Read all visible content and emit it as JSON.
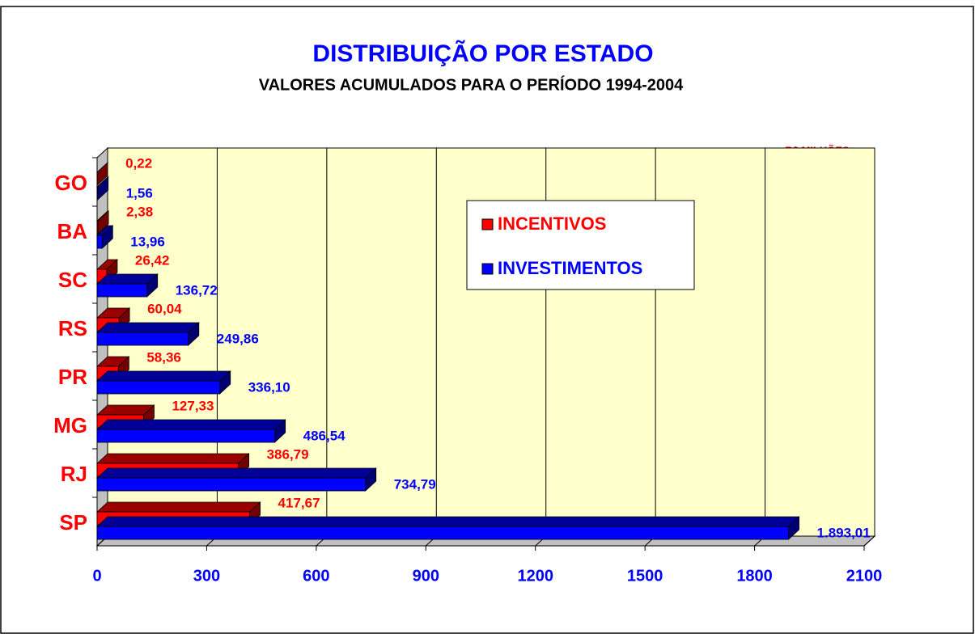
{
  "chart_data": {
    "type": "bar3d_horizontal",
    "title": "DISTRIBUIÇÃO POR ESTADO",
    "subtitle": "VALORES ACUMULADOS PARA O PERÍODO 1994-2004",
    "annotation": "R$ MILHÕES",
    "categories": [
      "GO",
      "BA",
      "SC",
      "RS",
      "PR",
      "MG",
      "RJ",
      "SP"
    ],
    "series": [
      {
        "name": "INCENTIVOS",
        "color": "#ff0000",
        "values": [
          0.22,
          2.38,
          26.42,
          60.04,
          58.36,
          127.33,
          386.79,
          417.67
        ],
        "value_labels": [
          "0,22",
          "2,38",
          "26,42",
          "60,04",
          "58,36",
          "127,33",
          "386,79",
          "417,67"
        ]
      },
      {
        "name": "INVESTIMENTOS",
        "color": "#0000ff",
        "values": [
          1.56,
          13.96,
          136.72,
          249.86,
          336.1,
          486.54,
          734.79,
          1893.01
        ],
        "value_labels": [
          "1,56",
          "13,96",
          "136,72",
          "249,86",
          "336,10",
          "486,54",
          "734,79",
          "1.893,01"
        ]
      }
    ],
    "xlim": [
      0,
      2100
    ],
    "xticks": [
      0,
      300,
      600,
      900,
      1200,
      1500,
      1800,
      2100
    ],
    "grid": true,
    "legend": "upper center"
  }
}
